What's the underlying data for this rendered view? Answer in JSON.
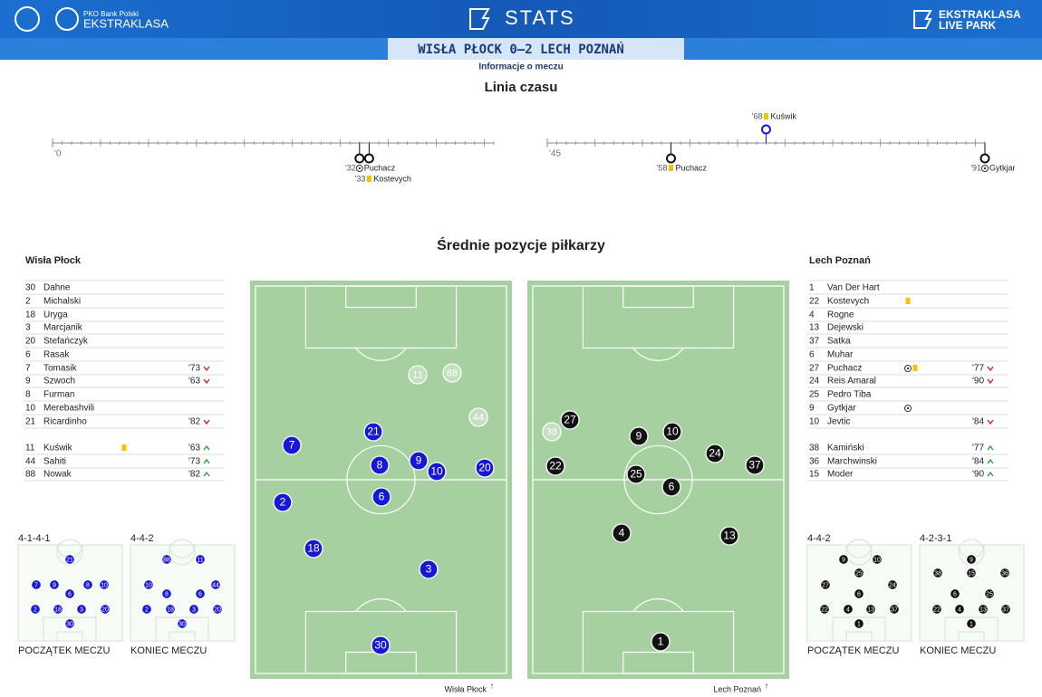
{
  "header": {
    "bank": "PKO Bank Polski",
    "league": "EKSTRAKLASA",
    "stats": "STATS",
    "live_park": [
      "EKSTRAKLASA",
      "LIVE PARK"
    ],
    "match": "WISŁA PŁOCK 0–2 LECH POZNAŃ",
    "info": "Informacje o meczu"
  },
  "timeline": {
    "title": "Linia czasu",
    "halves": [
      {
        "start": {
          "value": 0,
          "label": "'0"
        },
        "events": [
          {
            "minute": {
              "value": 32,
              "label": "'32"
            },
            "player": "Puchacz",
            "type": "goal",
            "team": "away"
          },
          {
            "minute": {
              "value": 33,
              "label": "'33"
            },
            "player": "Kostevych",
            "type": "yellow",
            "team": "away"
          }
        ]
      },
      {
        "start": {
          "value": 45,
          "label": "'45"
        },
        "events": [
          {
            "minute": {
              "value": 58,
              "label": "'58"
            },
            "player": "Puchacz",
            "type": "yellow",
            "team": "away"
          },
          {
            "minute": {
              "value": 68,
              "label": "'68"
            },
            "player": "Kuświk",
            "type": "yellow",
            "team": "home"
          },
          {
            "minute": {
              "value": 91,
              "label": "'91"
            },
            "player": "Gytkjar",
            "type": "goal",
            "team": "away"
          }
        ]
      }
    ]
  },
  "positions": {
    "title": "Średnie pozycje piłkarzy",
    "teams": [
      {
        "name": "Wisła Płock",
        "color": "#1717d6",
        "starters": [
          {
            "number": 30,
            "name": "Dahne"
          },
          {
            "number": 2,
            "name": "Michalski"
          },
          {
            "number": 18,
            "name": "Uryga"
          },
          {
            "number": 3,
            "name": "Marcjanik"
          },
          {
            "number": 20,
            "name": "Stefańczyk"
          },
          {
            "number": 6,
            "name": "Rasak"
          },
          {
            "number": 7,
            "name": "Tomasik",
            "sub_off": "'73"
          },
          {
            "number": 9,
            "name": "Szwoch",
            "sub_off": "'63"
          },
          {
            "number": 8,
            "name": "Furman"
          },
          {
            "number": 10,
            "name": "Merebashvili"
          },
          {
            "number": 21,
            "name": "Ricardinho",
            "sub_off": "'82"
          }
        ],
        "subs": [
          {
            "number": 11,
            "name": "Kuświk",
            "yellow_card": true,
            "sub_on": "'63"
          },
          {
            "number": 44,
            "name": "Sahiti",
            "sub_on": "'73"
          },
          {
            "number": 88,
            "name": "Nowak",
            "sub_on": "'82"
          }
        ],
        "formations": [
          {
            "name": "4-1-4-1",
            "caption": "POCZĄTEK MECZU",
            "players": [
              21,
              7,
              9,
              8,
              10,
              6,
              2,
              18,
              3,
              20,
              30
            ]
          },
          {
            "name": "4-4-2",
            "caption": "KONIEC MECZU",
            "players": [
              88,
              11,
              10,
              44,
              8,
              6,
              2,
              18,
              3,
              20,
              30
            ]
          }
        ]
      },
      {
        "name": "Lech Poznań",
        "color": "#111111",
        "starters": [
          {
            "number": 1,
            "name": "Van Der Hart"
          },
          {
            "number": 22,
            "name": "Kostevych",
            "yellow_card": true
          },
          {
            "number": 4,
            "name": "Rogne"
          },
          {
            "number": 13,
            "name": "Dejewski"
          },
          {
            "number": 37,
            "name": "Satka"
          },
          {
            "number": 6,
            "name": "Muhar"
          },
          {
            "number": 27,
            "name": "Puchacz",
            "goal": true,
            "yellow_card": true,
            "sub_off": "'77"
          },
          {
            "number": 24,
            "name": "Reis Amaral",
            "sub_off": "'90"
          },
          {
            "number": 25,
            "name": "Pedro Tiba"
          },
          {
            "number": 9,
            "name": "Gytkjar",
            "goal": true
          },
          {
            "number": 10,
            "name": "Jevtic",
            "sub_off": "'84"
          }
        ],
        "subs": [
          {
            "number": 38,
            "name": "Kamiński",
            "sub_on": "'77"
          },
          {
            "number": 36,
            "name": "Marchwinski",
            "sub_on": "'84"
          },
          {
            "number": 15,
            "name": "Moder",
            "sub_on": "'90"
          }
        ],
        "formations": [
          {
            "name": "4-4-2",
            "caption": "POCZĄTEK MECZU",
            "players": [
              9,
              10,
              25,
              27,
              24,
              6,
              22,
              4,
              13,
              37,
              1
            ]
          },
          {
            "name": "4-2-3-1",
            "caption": "KONIEC MECZU",
            "players": [
              9,
              38,
              15,
              36,
              6,
              25,
              22,
              4,
              13,
              37,
              1
            ]
          }
        ]
      }
    ]
  }
}
